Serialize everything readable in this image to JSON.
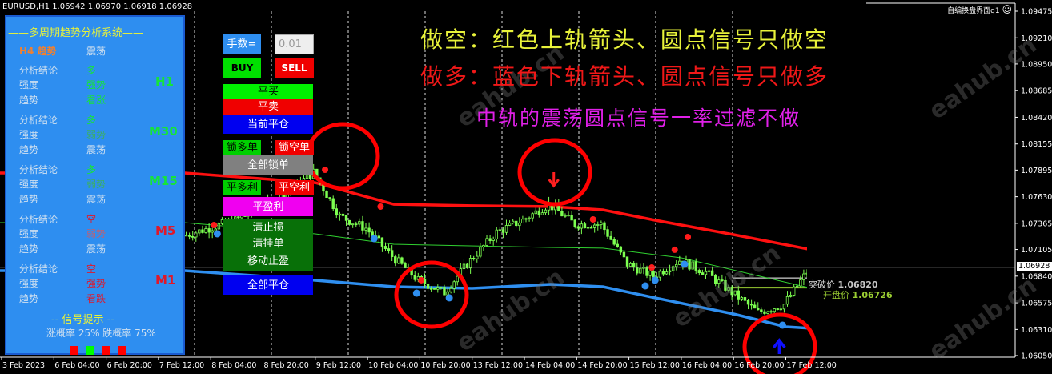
{
  "header": {
    "symbol_info": "EURUSD,H1  1.06942 1.06970 1.06918 1.06928",
    "top_right_label": "自编换盘界面g1",
    "smiley_icon": "smiley-icon"
  },
  "annotations": {
    "line1": "做空：红色上轨箭头、圆点信号只做空",
    "line2": "做多：蓝色下轨箭头、圆点信号只做多",
    "line3": "中轨的震荡圆点信号一率过滤不做",
    "colors": {
      "line1": "#e8f23a",
      "line2": "#f01818",
      "line3": "#e020e8"
    }
  },
  "analysis_panel": {
    "title": "——多周期趋势分析系统——",
    "h4": {
      "label": "H4 趋势",
      "value": "震荡"
    },
    "row_labels": {
      "conclusion": "分析结论",
      "strength": "强度",
      "trend": "趋势"
    },
    "timeframes": [
      {
        "tf": "H1",
        "conclusion": "多",
        "strength": "强势",
        "trend": "看涨",
        "color": "#16e43a",
        "strength_color": "#16e43a",
        "trend_color": "#16e43a"
      },
      {
        "tf": "M30",
        "conclusion": "多",
        "strength": "弱势",
        "trend": "震荡",
        "color": "#16e43a",
        "strength_color": "#3cb060",
        "trend_color": "#cfe0f0"
      },
      {
        "tf": "M15",
        "conclusion": "多",
        "strength": "弱势",
        "trend": "震荡",
        "color": "#16e43a",
        "strength_color": "#3cb060",
        "trend_color": "#cfe0f0"
      },
      {
        "tf": "M5",
        "conclusion": "空",
        "strength": "弱势",
        "trend": "震荡",
        "color": "#e0182a",
        "strength_color": "#c06070",
        "trend_color": "#cfe0f0"
      },
      {
        "tf": "M1",
        "conclusion": "空",
        "strength": "强势",
        "trend": "看跌",
        "color": "#e0182a",
        "strength_color": "#e0182a",
        "trend_color": "#e0182a"
      }
    ],
    "signal_title": "-- 信号提示 --",
    "probability": "涨概率 25% 跌概率 75%",
    "signal_squares": [
      "#ff0000",
      "#00ff00",
      "#ff0000",
      "#ff0000"
    ]
  },
  "trade_panel": {
    "lots_label": "手数=",
    "lots_value": "0.01",
    "buy": "BUY",
    "sell": "SELL",
    "close_buy": "平买",
    "close_sell": "平卖",
    "close_current": "当前平仓",
    "lock_long": "锁多单",
    "lock_short": "锁空单",
    "lock_all": "全部锁单",
    "close_long_profit": "平多利",
    "close_short_profit": "平空利",
    "close_profit": "平盈利",
    "clear_sl": "清止损",
    "clear_pending": "清挂单",
    "trailing_tp": "移动止盈",
    "close_all": "全部平仓"
  },
  "price_labels": {
    "breakout": "突破价",
    "breakout_value": "1.06820",
    "open": "开盘价",
    "open_value": "1.06726",
    "current": "1.06928"
  },
  "watermark": "eahub.cn",
  "chart_data": {
    "type": "candlestick",
    "symbol": "EURUSD",
    "timeframe": "H1",
    "ylim": [
      1.0605,
      1.09475
    ],
    "y_ticks": [
      "1.09475",
      "1.09210",
      "1.08950",
      "1.08685",
      "1.08420",
      "1.08155",
      "1.07895",
      "1.07630",
      "1.07365",
      "1.07105",
      "1.06840",
      "1.06575",
      "1.06310",
      "1.06050"
    ],
    "x_ticks": [
      "3 Feb 2023",
      "6 Feb 04:00",
      "6 Feb 20:00",
      "7 Feb 12:00",
      "8 Feb 04:00",
      "8 Feb 20:00",
      "9 Feb 12:00",
      "10 Feb 04:00",
      "10 Feb 20:00",
      "13 Feb 12:00",
      "14 Feb 04:00",
      "14 Feb 20:00",
      "15 Feb 12:00",
      "16 Feb 04:00",
      "16 Feb 20:00",
      "17 Feb 12:00"
    ],
    "x": [
      "3 Feb 2023",
      "3 Feb 08:00",
      "6 Feb 04:00",
      "6 Feb 12:00",
      "6 Feb 20:00",
      "7 Feb 04:00",
      "7 Feb 12:00",
      "7 Feb 20:00",
      "8 Feb 04:00",
      "8 Feb 12:00",
      "8 Feb 20:00",
      "9 Feb 04:00",
      "9 Feb 12:00",
      "9 Feb 20:00",
      "10 Feb 04:00",
      "10 Feb 12:00",
      "10 Feb 20:00",
      "13 Feb 04:00",
      "13 Feb 12:00",
      "13 Feb 20:00",
      "14 Feb 04:00",
      "14 Feb 12:00",
      "14 Feb 20:00",
      "15 Feb 04:00",
      "15 Feb 12:00",
      "15 Feb 20:00",
      "16 Feb 04:00",
      "16 Feb 12:00",
      "16 Feb 20:00",
      "17 Feb 04:00",
      "17 Feb 12:00",
      "17 Feb 20:00"
    ],
    "close": [
      null,
      null,
      null,
      null,
      null,
      null,
      null,
      1.07237,
      1.07317,
      1.07396,
      1.07516,
      1.07675,
      1.07874,
      1.07436,
      1.07317,
      1.07038,
      1.06799,
      1.06679,
      1.06998,
      1.07277,
      1.07396,
      1.07555,
      1.07356,
      1.07356,
      1.06958,
      1.06839,
      1.06998,
      1.06878,
      1.06679,
      1.0648,
      1.0656,
      1.06928
    ],
    "series": [
      {
        "role": "upper-band",
        "color": "#ff1010",
        "values": {
          "7 Feb 20:00": 1.07866,
          "9 Feb 12:00": 1.0777,
          "10 Feb 12:00": 1.07555,
          "13 Feb 12:00": 1.0754,
          "14 Feb 12:00": 1.07532,
          "15 Feb 04:00": 1.075,
          "15 Feb 20:00": 1.07396,
          "16 Feb 20:00": 1.07253,
          "17 Feb 20:00": 1.07102
        }
      },
      {
        "role": "middle-band",
        "color": "#30d030",
        "values": {
          "7 Feb 20:00": 1.07372,
          "9 Feb 12:00": 1.07261,
          "10 Feb 12:00": 1.07157,
          "14 Feb 12:00": 1.07125,
          "15 Feb 04:00": 1.07118,
          "16 Feb 04:00": 1.07022,
          "17 Feb 04:00": 1.06839,
          "17 Feb 20:00": 1.06719
        }
      },
      {
        "role": "lower-band",
        "color": "#2f8ff0",
        "values": {
          "7 Feb 20:00": 1.06894,
          "8 Feb 20:00": 1.06839,
          "9 Feb 12:00": 1.06799,
          "10 Feb 12:00": 1.06735,
          "13 Feb 12:00": 1.06719,
          "14 Feb 12:00": 1.06759,
          "15 Feb 04:00": 1.06735,
          "15 Feb 20:00": 1.06624,
          "16 Feb 20:00": 1.06464,
          "17 Feb 12:00": 1.06337,
          "17 Feb 20:00": 1.06321
        }
      }
    ],
    "signals": {
      "red_dots": [
        [
          "8 Feb 05:00",
          1.07348
        ],
        [
          "9 Feb 15:00",
          1.07898
        ],
        [
          "10 Feb 08:00",
          1.07532
        ],
        [
          "10 Feb 23:00",
          1.06799
        ],
        [
          "15 Feb 01:00",
          1.07404
        ],
        [
          "15 Feb 19:00",
          1.06926
        ],
        [
          "16 Feb 02:00",
          1.07102
        ],
        [
          "16 Feb 06:00",
          1.07229
        ]
      ],
      "blue_dots": [
        [
          "8 Feb 06:00",
          1.07261
        ],
        [
          "10 Feb 06:00",
          1.07213
        ],
        [
          "10 Feb 19:00",
          1.06671
        ],
        [
          "13 Feb 05:00",
          1.06624
        ],
        [
          "15 Feb 17:00",
          1.06743
        ],
        [
          "15 Feb 20:00",
          1.06799
        ],
        [
          "16 Feb 05:00",
          1.06958
        ],
        [
          "17 Feb 11:00",
          1.06353
        ]
      ],
      "down_arrows": [
        [
          "14 Feb 13:00",
          1.07778
        ]
      ],
      "up_arrows": [
        [
          "17 Feb 10:00",
          1.06146
        ]
      ]
    },
    "hlines": [
      {
        "value": 1.06928,
        "color": "#9a9a9a"
      },
      {
        "value": 1.0682,
        "color": "#a0a0a0"
      },
      {
        "value": 1.06726,
        "color": "#9acd32"
      }
    ],
    "grid": false
  }
}
